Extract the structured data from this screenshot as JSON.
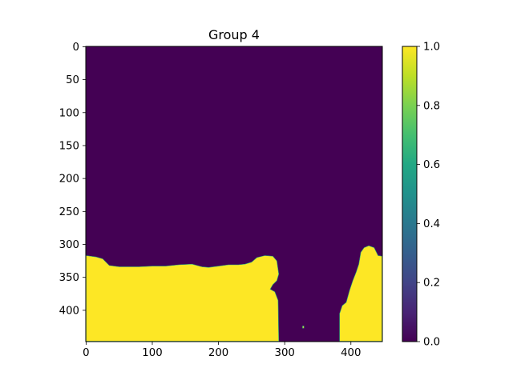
{
  "chart_data": {
    "type": "heatmap",
    "title": "Group 4",
    "xlabel": "",
    "ylabel": "",
    "image_extent": {
      "x": [
        -0.5,
        447.5
      ],
      "y": [
        447.5,
        -0.5
      ]
    },
    "xlim": [
      -0.5,
      447.5
    ],
    "ylim": [
      447.5,
      -0.5
    ],
    "x_ticks": [
      0,
      100,
      200,
      300,
      400
    ],
    "x_tick_labels": [
      "0",
      "100",
      "200",
      "300",
      "400"
    ],
    "y_ticks": [
      0,
      50,
      100,
      150,
      200,
      250,
      300,
      350,
      400
    ],
    "y_tick_labels": [
      "0",
      "50",
      "100",
      "150",
      "200",
      "250",
      "300",
      "350",
      "400"
    ],
    "grid": false,
    "colormap": "viridis",
    "value_range": [
      0.0,
      1.0
    ],
    "low_color": "#440154",
    "high_color": "#fde725",
    "colorbar": {
      "ticks": [
        0.0,
        0.2,
        0.4,
        0.6,
        0.8,
        1.0
      ],
      "tick_labels": [
        "0.0",
        "0.2",
        "0.4",
        "0.6",
        "0.8",
        "1.0"
      ]
    },
    "regions_value_1": [
      {
        "polygon": [
          [
            0,
            317
          ],
          [
            15,
            319
          ],
          [
            25,
            322
          ],
          [
            35,
            332
          ],
          [
            50,
            334
          ],
          [
            80,
            334
          ],
          [
            100,
            333
          ],
          [
            120,
            333
          ],
          [
            140,
            331
          ],
          [
            160,
            330
          ],
          [
            175,
            334
          ],
          [
            185,
            335
          ],
          [
            200,
            333
          ],
          [
            215,
            331
          ],
          [
            230,
            331
          ],
          [
            240,
            330
          ],
          [
            250,
            327
          ],
          [
            258,
            320
          ],
          [
            270,
            317
          ],
          [
            282,
            318
          ],
          [
            288,
            325
          ],
          [
            291,
            345
          ],
          [
            288,
            355
          ],
          [
            282,
            361
          ],
          [
            278,
            368
          ],
          [
            285,
            372
          ],
          [
            290,
            385
          ],
          [
            291,
            447
          ],
          [
            0,
            447
          ]
        ]
      },
      {
        "polygon": [
          [
            383,
            447
          ],
          [
            383,
            405
          ],
          [
            387,
            393
          ],
          [
            393,
            388
          ],
          [
            398,
            370
          ],
          [
            403,
            355
          ],
          [
            408,
            342
          ],
          [
            412,
            330
          ],
          [
            415,
            312
          ],
          [
            420,
            305
          ],
          [
            427,
            302
          ],
          [
            435,
            305
          ],
          [
            441,
            317
          ],
          [
            447,
            318
          ],
          [
            447,
            447
          ]
        ]
      },
      {
        "polygon": [
          [
            327,
            424
          ],
          [
            329,
            424
          ],
          [
            329,
            427
          ],
          [
            327,
            427
          ]
        ]
      }
    ]
  }
}
